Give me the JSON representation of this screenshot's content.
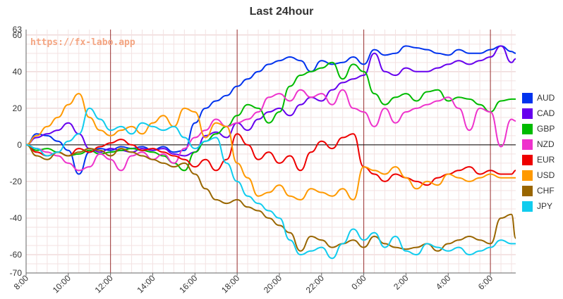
{
  "chart_data": {
    "type": "line",
    "title": "Last 24hour",
    "watermark": "https://fx-labo.app",
    "ylim": [
      -70,
      63
    ],
    "yticks": [
      63,
      60,
      40,
      20,
      0,
      -20,
      -40,
      -60,
      -70
    ],
    "xlim": [
      0,
      23.2
    ],
    "xticks": [
      {
        "pos": 0,
        "label": "8:00"
      },
      {
        "pos": 2,
        "label": "10:00"
      },
      {
        "pos": 4,
        "label": "12:00"
      },
      {
        "pos": 6,
        "label": "14:00"
      },
      {
        "pos": 8,
        "label": "16:00"
      },
      {
        "pos": 10,
        "label": "18:00"
      },
      {
        "pos": 12,
        "label": "20:00"
      },
      {
        "pos": 14,
        "label": "22:00"
      },
      {
        "pos": 16,
        "label": "0:00"
      },
      {
        "pos": 18,
        "label": "2:00"
      },
      {
        "pos": 20,
        "label": "4:00"
      },
      {
        "pos": 22,
        "label": "6:00"
      }
    ],
    "vertical_markers": [
      4,
      10,
      16,
      22
    ],
    "grid": true,
    "legend_position": "right",
    "series": [
      {
        "name": "AUD",
        "color": "#0033ee",
        "x": [
          0,
          0.5,
          1,
          1.5,
          2,
          2.5,
          3,
          3.5,
          4,
          4.5,
          5,
          5.5,
          6,
          6.5,
          7,
          7.5,
          8,
          8.5,
          9,
          9.5,
          10,
          10.5,
          11,
          11.5,
          12,
          12.5,
          13,
          13.5,
          14,
          14.5,
          15,
          15.5,
          16,
          16.5,
          17,
          17.5,
          18,
          18.5,
          19,
          19.5,
          20,
          20.5,
          21,
          21.5,
          22,
          22.5,
          23,
          23.2
        ],
        "y": [
          0,
          6,
          5,
          2,
          -3,
          -16,
          -4,
          -2,
          -3,
          -1,
          -2,
          -1,
          -3,
          -1,
          -4,
          -3,
          12,
          20,
          24,
          27,
          32,
          36,
          40,
          44,
          46,
          48,
          46,
          40,
          46,
          44,
          45,
          48,
          44,
          52,
          49,
          50,
          54,
          53,
          52,
          50,
          49,
          52,
          50,
          50,
          52,
          54,
          51,
          50
        ]
      },
      {
        "name": "CAD",
        "color": "#6600ee",
        "x": [
          0,
          0.5,
          1,
          1.5,
          2,
          2.5,
          3,
          3.5,
          4,
          4.5,
          5,
          5.5,
          6,
          6.5,
          7,
          7.5,
          8,
          8.5,
          9,
          9.5,
          10,
          10.5,
          11,
          11.5,
          12,
          12.5,
          13,
          13.5,
          14,
          14.5,
          15,
          15.5,
          16,
          16.5,
          17,
          17.5,
          18,
          18.5,
          19,
          19.5,
          20,
          20.5,
          21,
          21.5,
          22,
          22.5,
          23,
          23.2
        ],
        "y": [
          0,
          4,
          6,
          8,
          12,
          6,
          -2,
          -4,
          -2,
          -3,
          -4,
          -2,
          -3,
          -2,
          -5,
          -6,
          -4,
          5,
          7,
          4,
          12,
          8,
          14,
          18,
          20,
          16,
          22,
          26,
          24,
          30,
          34,
          36,
          38,
          50,
          40,
          38,
          42,
          40,
          40,
          42,
          44,
          46,
          44,
          46,
          48,
          54,
          45,
          47
        ]
      },
      {
        "name": "GBP",
        "color": "#00bb00",
        "x": [
          0,
          0.5,
          1,
          1.5,
          2,
          2.5,
          3,
          3.5,
          4,
          4.5,
          5,
          5.5,
          6,
          6.5,
          7,
          7.5,
          8,
          8.5,
          9,
          9.5,
          10,
          10.5,
          11,
          11.5,
          12,
          12.5,
          13,
          13.5,
          14,
          14.5,
          15,
          15.5,
          16,
          16.5,
          17,
          17.5,
          18,
          18.5,
          19,
          19.5,
          20,
          20.5,
          21,
          21.5,
          22,
          22.5,
          23,
          23.2
        ],
        "y": [
          0,
          -3,
          -2,
          -4,
          -6,
          -5,
          -3,
          -5,
          -4,
          -3,
          -2,
          -3,
          -4,
          -6,
          -10,
          -14,
          -4,
          2,
          6,
          10,
          16,
          22,
          20,
          12,
          18,
          32,
          38,
          40,
          42,
          45,
          36,
          44,
          40,
          28,
          22,
          26,
          28,
          24,
          29,
          30,
          24,
          26,
          25,
          22,
          18,
          24,
          25,
          25
        ]
      },
      {
        "name": "NZD",
        "color": "#ee33cc",
        "x": [
          0,
          0.5,
          1,
          1.5,
          2,
          2.5,
          3,
          3.5,
          4,
          4.5,
          5,
          5.5,
          6,
          6.5,
          7,
          7.5,
          8,
          8.5,
          9,
          9.5,
          10,
          10.5,
          11,
          11.5,
          12,
          12.5,
          13,
          13.5,
          14,
          14.5,
          15,
          15.5,
          16,
          16.5,
          17,
          17.5,
          18,
          18.5,
          19,
          19.5,
          20,
          20.5,
          21,
          21.5,
          22,
          22.5,
          23,
          23.2
        ],
        "y": [
          0,
          -2,
          -4,
          -6,
          -10,
          -14,
          -12,
          -5,
          -8,
          -14,
          -6,
          -4,
          -8,
          -5,
          -10,
          -2,
          4,
          8,
          14,
          10,
          12,
          14,
          18,
          26,
          28,
          24,
          30,
          26,
          28,
          22,
          30,
          20,
          18,
          10,
          20,
          12,
          18,
          20,
          22,
          24,
          26,
          20,
          8,
          20,
          18,
          -1,
          14,
          13
        ]
      },
      {
        "name": "EUR",
        "color": "#ee0000",
        "x": [
          0,
          0.5,
          1,
          1.5,
          2,
          2.5,
          3,
          3.5,
          4,
          4.5,
          5,
          5.5,
          6,
          6.5,
          7,
          7.5,
          8,
          8.5,
          9,
          9.5,
          10,
          10.5,
          11,
          11.5,
          12,
          12.5,
          13,
          13.5,
          14,
          14.5,
          15,
          15.5,
          16,
          16.5,
          17,
          17.5,
          18,
          18.5,
          19,
          19.5,
          20,
          20.5,
          21,
          21.5,
          22,
          22.5,
          23,
          23.2
        ],
        "y": [
          0,
          -4,
          -6,
          -4,
          -6,
          -2,
          -4,
          -1,
          1,
          3,
          0,
          -3,
          -2,
          -4,
          -6,
          -8,
          -12,
          -8,
          -14,
          -8,
          6,
          0,
          -8,
          -4,
          -10,
          -6,
          -14,
          -4,
          2,
          -2,
          4,
          6,
          -12,
          -16,
          -20,
          -16,
          -18,
          -20,
          -22,
          -18,
          -16,
          -14,
          -12,
          -16,
          -14,
          -16,
          -16,
          -14
        ]
      },
      {
        "name": "USD",
        "color": "#ff9900",
        "x": [
          0,
          0.5,
          1,
          1.5,
          2,
          2.5,
          3,
          3.5,
          4,
          4.5,
          5,
          5.5,
          6,
          6.5,
          7,
          7.5,
          8,
          8.5,
          9,
          9.5,
          10,
          10.5,
          11,
          11.5,
          12,
          12.5,
          13,
          13.5,
          14,
          14.5,
          15,
          15.5,
          16,
          16.5,
          17,
          17.5,
          18,
          18.5,
          19,
          19.5,
          20,
          20.5,
          21,
          21.5,
          22,
          22.5,
          23,
          23.2
        ],
        "y": [
          0,
          5,
          10,
          15,
          22,
          28,
          15,
          8,
          5,
          8,
          10,
          6,
          12,
          16,
          10,
          20,
          18,
          4,
          12,
          10,
          -10,
          -18,
          -28,
          -26,
          -22,
          -28,
          -30,
          -24,
          -26,
          -28,
          -24,
          -30,
          -12,
          -14,
          -16,
          -12,
          -18,
          -24,
          -20,
          -22,
          -16,
          -18,
          -20,
          -18,
          -16,
          -18,
          -18,
          -18
        ]
      },
      {
        "name": "CHF",
        "color": "#996600",
        "x": [
          0,
          0.5,
          1,
          1.5,
          2,
          2.5,
          3,
          3.5,
          4,
          4.5,
          5,
          5.5,
          6,
          6.5,
          7,
          7.5,
          8,
          8.5,
          9,
          9.5,
          10,
          10.5,
          11,
          11.5,
          12,
          12.5,
          13,
          13.5,
          14,
          14.5,
          15,
          15.5,
          16,
          16.5,
          17,
          17.5,
          18,
          18.5,
          19,
          19.5,
          20,
          20.5,
          21,
          21.5,
          22,
          22.5,
          23,
          23.2
        ],
        "y": [
          0,
          -6,
          -8,
          -4,
          -6,
          -4,
          -2,
          -3,
          -6,
          -2,
          -4,
          -6,
          -8,
          -10,
          -12,
          -10,
          -16,
          -24,
          -30,
          -32,
          -30,
          -34,
          -36,
          -40,
          -44,
          -48,
          -58,
          -50,
          -52,
          -56,
          -54,
          -52,
          -56,
          -50,
          -54,
          -56,
          -57,
          -56,
          -54,
          -58,
          -54,
          -52,
          -50,
          -52,
          -54,
          -40,
          -38,
          -51
        ]
      },
      {
        "name": "JPY",
        "color": "#11ccee",
        "x": [
          0,
          0.5,
          1,
          1.5,
          2,
          2.5,
          3,
          3.5,
          4,
          4.5,
          5,
          5.5,
          6,
          6.5,
          7,
          7.5,
          8,
          8.5,
          9,
          9.5,
          10,
          10.5,
          11,
          11.5,
          12,
          12.5,
          13,
          13.5,
          14,
          14.5,
          15,
          15.5,
          16,
          16.5,
          17,
          17.5,
          18,
          18.5,
          19,
          19.5,
          20,
          20.5,
          21,
          21.5,
          22,
          22.5,
          23,
          23.2
        ],
        "y": [
          0,
          -2,
          -6,
          -4,
          2,
          6,
          20,
          14,
          8,
          10,
          6,
          12,
          10,
          8,
          10,
          4,
          -2,
          2,
          4,
          -10,
          -20,
          -28,
          -32,
          -36,
          -40,
          -52,
          -60,
          -58,
          -56,
          -62,
          -54,
          -46,
          -52,
          -48,
          -56,
          -50,
          -58,
          -60,
          -54,
          -56,
          -58,
          -56,
          -60,
          -58,
          -56,
          -52,
          -54,
          -54
        ]
      }
    ]
  }
}
